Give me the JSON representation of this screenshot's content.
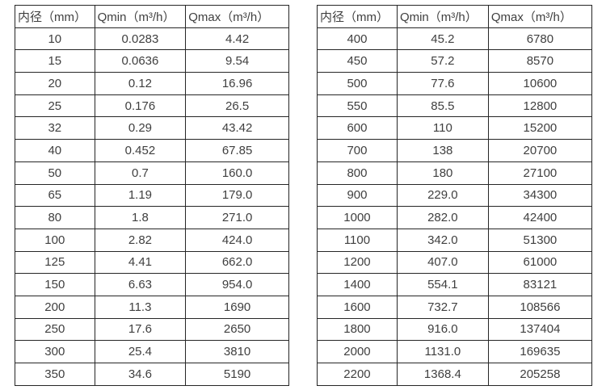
{
  "page": {
    "background_color": "#ffffff",
    "text_color": "#3f3f3f",
    "border_color": "#262626"
  },
  "tables": [
    {
      "name": "flow-table-small-diameters",
      "headers": [
        "内径（mm）",
        "Qmin（m³/h）",
        "Qmax（m³/h）"
      ],
      "rows": [
        [
          "10",
          "0.0283",
          "4.42"
        ],
        [
          "15",
          "0.0636",
          "9.54"
        ],
        [
          "20",
          "0.12",
          "16.96"
        ],
        [
          "25",
          "0.176",
          "26.5"
        ],
        [
          "32",
          "0.29",
          "43.42"
        ],
        [
          "40",
          "0.452",
          "67.85"
        ],
        [
          "50",
          "0.7",
          "160.0"
        ],
        [
          "65",
          "1.19",
          "179.0"
        ],
        [
          "80",
          "1.8",
          "271.0"
        ],
        [
          "100",
          "2.82",
          "424.0"
        ],
        [
          "125",
          "4.41",
          "662.0"
        ],
        [
          "150",
          "6.63",
          "954.0"
        ],
        [
          "200",
          "11.3",
          "1690"
        ],
        [
          "250",
          "17.6",
          "2650"
        ],
        [
          "300",
          "25.4",
          "3810"
        ],
        [
          "350",
          "34.6",
          "5190"
        ]
      ]
    },
    {
      "name": "flow-table-large-diameters",
      "headers": [
        "内径（mm）",
        "Qmin（m³/h）",
        "Qmax（m³/h）"
      ],
      "rows": [
        [
          "400",
          "45.2",
          "6780"
        ],
        [
          "450",
          "57.2",
          "8570"
        ],
        [
          "500",
          "77.6",
          "10600"
        ],
        [
          "550",
          "85.5",
          "12800"
        ],
        [
          "600",
          "110",
          "15200"
        ],
        [
          "700",
          "138",
          "20700"
        ],
        [
          "800",
          "180",
          "27100"
        ],
        [
          "900",
          "229.0",
          "34300"
        ],
        [
          "1000",
          "282.0",
          "42400"
        ],
        [
          "1100",
          "342.0",
          "51300"
        ],
        [
          "1200",
          "407.0",
          "61000"
        ],
        [
          "1400",
          "554.1",
          "83121"
        ],
        [
          "1600",
          "732.7",
          "108566"
        ],
        [
          "1800",
          "916.0",
          "137404"
        ],
        [
          "2000",
          "1131.0",
          "169635"
        ],
        [
          "2200",
          "1368.4",
          "205258"
        ]
      ]
    }
  ]
}
